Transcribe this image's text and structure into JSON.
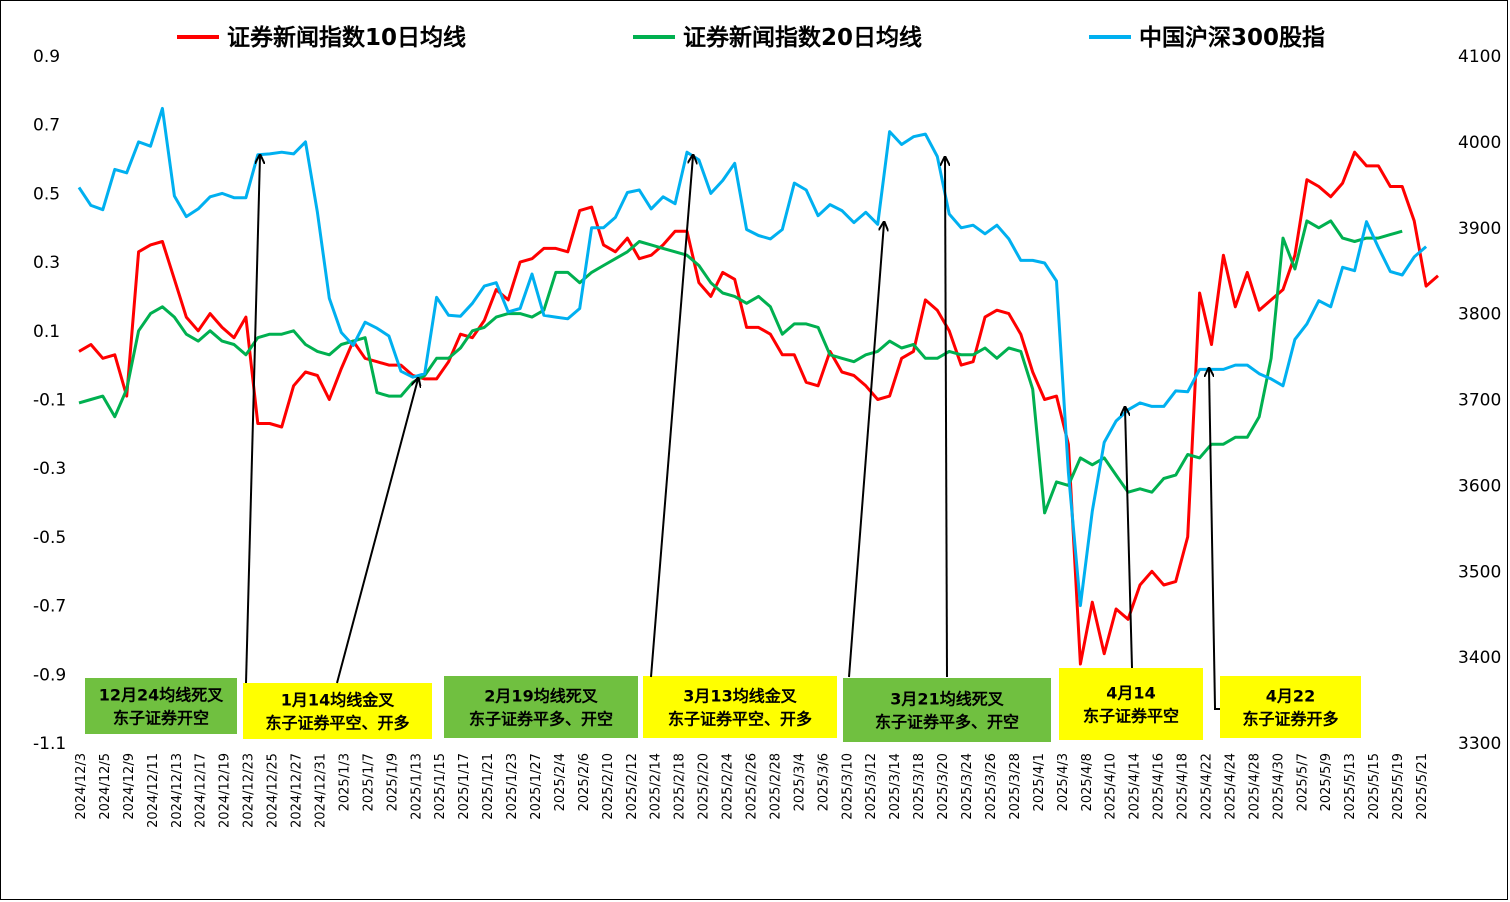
{
  "chart_data": {
    "type": "line",
    "legend": {
      "placement": "top",
      "entries": [
        {
          "label": "证券新闻指数10日均线",
          "color": "#ff0000"
        },
        {
          "label": "证券新闻指数20日均线",
          "color": "#00b050"
        },
        {
          "label": "中国沪深300股指",
          "color": "#00b0f0"
        }
      ]
    },
    "y_left": {
      "min": -1.1,
      "max": 0.9,
      "ticks": [
        "0.9",
        "0.7",
        "0.5",
        "0.3",
        "0.1",
        "-0.1",
        "-0.3",
        "-0.5",
        "-0.7",
        "-0.9",
        "-1.1"
      ]
    },
    "y_right": {
      "min": 3300,
      "max": 4100,
      "ticks": [
        "4100",
        "4000",
        "3900",
        "3800",
        "3700",
        "3600",
        "3500",
        "3400",
        "3300"
      ]
    },
    "x_tick_labels": [
      "2024/12/3",
      "2024/12/5",
      "2024/12/9",
      "2024/12/11",
      "2024/12/13",
      "2024/12/17",
      "2024/12/19",
      "2024/12/23",
      "2024/12/25",
      "2024/12/27",
      "2024/12/31",
      "2025/1/3",
      "2025/1/7",
      "2025/1/9",
      "2025/1/13",
      "2025/1/15",
      "2025/1/17",
      "2025/1/21",
      "2025/1/23",
      "2025/1/27",
      "2025/2/4",
      "2025/2/6",
      "2025/2/10",
      "2025/2/12",
      "2025/2/14",
      "2025/2/18",
      "2025/2/20",
      "2025/2/24",
      "2025/2/26",
      "2025/2/28",
      "2025/3/4",
      "2025/3/6",
      "2025/3/10",
      "2025/3/12",
      "2025/3/14",
      "2025/3/18",
      "2025/3/20",
      "2025/3/24",
      "2025/3/26",
      "2025/3/28",
      "2025/4/1",
      "2025/4/3",
      "2025/4/8",
      "2025/4/10",
      "2025/4/14",
      "2025/4/16",
      "2025/4/18",
      "2025/4/22",
      "2025/4/24",
      "2025/4/28",
      "2025/4/30",
      "2025/5/7",
      "2025/5/9",
      "2025/5/13",
      "2025/5/15",
      "2025/5/19",
      "2025/5/21"
    ],
    "grid": false,
    "series": [
      {
        "name": "证券新闻指数10日均线",
        "axis": "left",
        "color": "#ff0000",
        "values": [
          0.04,
          0.06,
          0.02,
          0.03,
          -0.09,
          0.33,
          0.35,
          0.36,
          0.25,
          0.14,
          0.1,
          0.15,
          0.11,
          0.08,
          0.14,
          -0.17,
          -0.17,
          -0.18,
          -0.06,
          -0.02,
          -0.03,
          -0.1,
          -0.01,
          0.07,
          0.02,
          0.01,
          0,
          0,
          -0.03,
          -0.04,
          -0.04,
          0.01,
          0.09,
          0.08,
          0.13,
          0.22,
          0.19,
          0.3,
          0.31,
          0.34,
          0.34,
          0.33,
          0.45,
          0.46,
          0.35,
          0.33,
          0.37,
          0.31,
          0.32,
          0.35,
          0.39,
          0.39,
          0.24,
          0.2,
          0.27,
          0.25,
          0.11,
          0.11,
          0.09,
          0.03,
          0.03,
          -0.05,
          -0.06,
          0.04,
          -0.02,
          -0.03,
          -0.06,
          -0.1,
          -0.09,
          0.02,
          0.04,
          0.19,
          0.16,
          0.1,
          0,
          0.01,
          0.14,
          0.16,
          0.15,
          0.09,
          -0.02,
          -0.1,
          -0.09,
          -0.23,
          -0.87,
          -0.69,
          -0.84,
          -0.71,
          -0.74,
          -0.64,
          -0.6,
          -0.64,
          -0.63,
          -0.5,
          0.21,
          0.06,
          0.32,
          0.17,
          0.27,
          0.16,
          0.19,
          0.22,
          0.32,
          0.54,
          0.52,
          0.49,
          0.53,
          0.62,
          0.58,
          0.58,
          0.52,
          0.52,
          0.42,
          0.23,
          0.26
        ]
      },
      {
        "name": "证券新闻指数20日均线",
        "axis": "left",
        "color": "#00b050",
        "values": [
          -0.11,
          -0.1,
          -0.09,
          -0.15,
          -0.07,
          0.1,
          0.15,
          0.17,
          0.14,
          0.09,
          0.07,
          0.1,
          0.07,
          0.06,
          0.03,
          0.08,
          0.09,
          0.09,
          0.1,
          0.06,
          0.04,
          0.03,
          0.06,
          0.07,
          0.08,
          -0.08,
          -0.09,
          -0.09,
          -0.05,
          -0.03,
          0.02,
          0.02,
          0.05,
          0.1,
          0.11,
          0.14,
          0.15,
          0.15,
          0.14,
          0.16,
          0.27,
          0.27,
          0.24,
          0.27,
          0.29,
          0.31,
          0.33,
          0.36,
          0.35,
          0.34,
          0.33,
          0.32,
          0.29,
          0.24,
          0.21,
          0.2,
          0.18,
          0.2,
          0.17,
          0.09,
          0.12,
          0.12,
          0.11,
          0.03,
          0.02,
          0.01,
          0.03,
          0.04,
          0.07,
          0.05,
          0.06,
          0.02,
          0.02,
          0.04,
          0.03,
          0.03,
          0.05,
          0.02,
          0.05,
          0.04,
          -0.07,
          -0.43,
          -0.34,
          -0.35,
          -0.27,
          -0.29,
          -0.27,
          -0.32,
          -0.37,
          -0.36,
          -0.37,
          -0.33,
          -0.32,
          -0.26,
          -0.27,
          -0.23,
          -0.23,
          -0.21,
          -0.21,
          -0.15,
          0.02,
          0.37,
          0.28,
          0.42,
          0.4,
          0.42,
          0.37,
          0.36,
          0.37,
          0.37,
          0.38,
          0.39
        ]
      },
      {
        "name": "中国沪深300股指",
        "axis": "right",
        "color": "#00b0f0",
        "values": [
          3947,
          3926,
          3921,
          3968,
          3964,
          4000,
          3995,
          4039,
          3937,
          3913,
          3922,
          3936,
          3940,
          3935,
          3935,
          3985,
          3986,
          3988,
          3986,
          4000,
          3918,
          3818,
          3778,
          3763,
          3790,
          3783,
          3774,
          3733,
          3726,
          3730,
          3819,
          3798,
          3797,
          3812,
          3832,
          3836,
          3802,
          3806,
          3846,
          3798,
          3796,
          3794,
          3806,
          3900,
          3900,
          3912,
          3941,
          3944,
          3922,
          3936,
          3928,
          3988,
          3979,
          3940,
          3955,
          3975,
          3898,
          3891,
          3887,
          3898,
          3952,
          3944,
          3914,
          3927,
          3920,
          3906,
          3918,
          3904,
          4012,
          3997,
          4006,
          4009,
          3983,
          3916,
          3900,
          3903,
          3893,
          3903,
          3887,
          3862,
          3862,
          3859,
          3838,
          3615,
          3460,
          3570,
          3650,
          3675,
          3688,
          3696,
          3692,
          3692,
          3710,
          3709,
          3735,
          3735,
          3735,
          3740,
          3740,
          3730,
          3724,
          3716,
          3770,
          3788,
          3815,
          3808,
          3854,
          3850,
          3907,
          3877,
          3849,
          3845,
          3866,
          3878
        ]
      }
    ],
    "annotations": [
      {
        "lines": [
          "12月24均线死叉",
          "东子证券开空"
        ],
        "bg": "#70c040"
      },
      {
        "lines": [
          "1月14均线金叉",
          "东子证券平空、开多"
        ],
        "bg": "#ffff00"
      },
      {
        "lines": [
          "2月19均线死叉",
          "东子证券平多、开空"
        ],
        "bg": "#70c040"
      },
      {
        "lines": [
          "3月13均线金叉",
          "东子证券平空、开多"
        ],
        "bg": "#ffff00"
      },
      {
        "lines": [
          "3月21均线死叉",
          "东子证券平多、开空"
        ],
        "bg": "#70c040"
      },
      {
        "lines": [
          "4月14",
          "东子证券平空"
        ],
        "bg": "#ffff00"
      },
      {
        "lines": [
          "4月22",
          "东子证券开多"
        ],
        "bg": "#ffff00"
      }
    ]
  }
}
